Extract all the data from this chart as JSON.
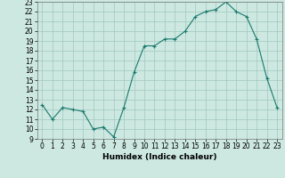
{
  "xlabel": "Humidex (Indice chaleur)",
  "x": [
    0,
    1,
    2,
    3,
    4,
    5,
    6,
    7,
    8,
    9,
    10,
    11,
    12,
    13,
    14,
    15,
    16,
    17,
    18,
    19,
    20,
    21,
    22,
    23
  ],
  "y": [
    12.5,
    11.0,
    12.2,
    12.0,
    11.8,
    10.0,
    10.2,
    9.2,
    12.2,
    15.8,
    18.5,
    18.5,
    19.2,
    19.2,
    20.0,
    21.5,
    22.0,
    22.2,
    23.0,
    22.0,
    21.5,
    19.2,
    15.2,
    12.2
  ],
  "xlim": [
    -0.5,
    23.5
  ],
  "ylim": [
    9,
    23
  ],
  "yticks": [
    9,
    10,
    11,
    12,
    13,
    14,
    15,
    16,
    17,
    18,
    19,
    20,
    21,
    22,
    23
  ],
  "xticks": [
    0,
    1,
    2,
    3,
    4,
    5,
    6,
    7,
    8,
    9,
    10,
    11,
    12,
    13,
    14,
    15,
    16,
    17,
    18,
    19,
    20,
    21,
    22,
    23
  ],
  "line_color": "#1a7a6e",
  "marker_color": "#1a7a6e",
  "bg_color": "#cce8e0",
  "grid_color": "#a0c8c0",
  "xlabel_fontsize": 6.5,
  "tick_fontsize": 5.5
}
